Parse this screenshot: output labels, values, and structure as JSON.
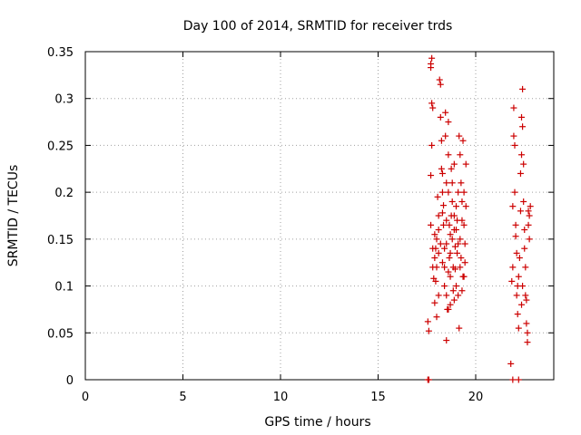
{
  "chart_data": {
    "type": "scatter",
    "title": "Day 100 of 2014, SRMTID for receiver trds",
    "xlabel": "GPS time / hours",
    "ylabel": "SRMTID / TECUs",
    "xlim": [
      0,
      24
    ],
    "ylim": [
      0,
      0.35
    ],
    "x_ticks": [
      0,
      5,
      10,
      15,
      20
    ],
    "x_tick_labels": [
      "0",
      "5",
      "10",
      "15",
      "20"
    ],
    "y_ticks": [
      0,
      0.05,
      0.1,
      0.15,
      0.2,
      0.25,
      0.3,
      0.35
    ],
    "y_tick_labels": [
      "0",
      "0.05",
      "0.1",
      "0.15",
      "0.2",
      "0.25",
      "0.3",
      "0.35"
    ],
    "grid": true,
    "marker": "+",
    "color": "#cc0000",
    "series": [
      {
        "points": [
          [
            17.55,
            0.0
          ],
          [
            17.6,
            0.0
          ],
          [
            21.9,
            0.0
          ],
          [
            22.2,
            0.0
          ],
          [
            17.55,
            0.062
          ],
          [
            17.6,
            0.052
          ],
          [
            17.7,
            0.165
          ],
          [
            17.7,
            0.218
          ],
          [
            17.75,
            0.25
          ],
          [
            17.75,
            0.295
          ],
          [
            17.7,
            0.333
          ],
          [
            17.7,
            0.337
          ],
          [
            17.75,
            0.343
          ],
          [
            17.8,
            0.29
          ],
          [
            17.8,
            0.14
          ],
          [
            17.8,
            0.12
          ],
          [
            17.85,
            0.108
          ],
          [
            17.9,
            0.13
          ],
          [
            17.9,
            0.155
          ],
          [
            17.95,
            0.105
          ],
          [
            17.95,
            0.14
          ],
          [
            17.9,
            0.082
          ],
          [
            18.0,
            0.067
          ],
          [
            18.0,
            0.15
          ],
          [
            18.05,
            0.195
          ],
          [
            18.1,
            0.135
          ],
          [
            18.1,
            0.16
          ],
          [
            18.15,
            0.32
          ],
          [
            18.2,
            0.315
          ],
          [
            18.2,
            0.28
          ],
          [
            18.25,
            0.255
          ],
          [
            18.25,
            0.225
          ],
          [
            18.3,
            0.22
          ],
          [
            18.3,
            0.178
          ],
          [
            18.35,
            0.186
          ],
          [
            18.35,
            0.165
          ],
          [
            18.4,
            0.12
          ],
          [
            18.4,
            0.1
          ],
          [
            18.45,
            0.285
          ],
          [
            18.45,
            0.26
          ],
          [
            18.5,
            0.21
          ],
          [
            18.5,
            0.145
          ],
          [
            18.5,
            0.09
          ],
          [
            18.5,
            0.042
          ],
          [
            18.55,
            0.075
          ],
          [
            18.6,
            0.275
          ],
          [
            18.6,
            0.24
          ],
          [
            18.6,
            0.2
          ],
          [
            18.65,
            0.165
          ],
          [
            18.65,
            0.13
          ],
          [
            18.7,
            0.11
          ],
          [
            18.7,
            0.08
          ],
          [
            18.75,
            0.175
          ],
          [
            18.75,
            0.225
          ],
          [
            18.8,
            0.19
          ],
          [
            18.8,
            0.15
          ],
          [
            18.85,
            0.12
          ],
          [
            18.85,
            0.095
          ],
          [
            18.9,
            0.23
          ],
          [
            18.9,
            0.16
          ],
          [
            18.95,
            0.142
          ],
          [
            18.95,
            0.118
          ],
          [
            19.0,
            0.1
          ],
          [
            19.0,
            0.185
          ],
          [
            19.05,
            0.17
          ],
          [
            19.05,
            0.135
          ],
          [
            19.1,
            0.2
          ],
          [
            19.1,
            0.09
          ],
          [
            19.15,
            0.055
          ],
          [
            19.15,
            0.26
          ],
          [
            19.2,
            0.24
          ],
          [
            19.2,
            0.15
          ],
          [
            19.25,
            0.13
          ],
          [
            19.25,
            0.21
          ],
          [
            19.3,
            0.19
          ],
          [
            19.3,
            0.17
          ],
          [
            19.35,
            0.11
          ],
          [
            19.35,
            0.255
          ],
          [
            19.4,
            0.2
          ],
          [
            19.4,
            0.165
          ],
          [
            19.45,
            0.145
          ],
          [
            19.45,
            0.125
          ],
          [
            19.5,
            0.23
          ],
          [
            19.5,
            0.185
          ],
          [
            18.1,
            0.175
          ],
          [
            18.2,
            0.145
          ],
          [
            18.3,
            0.125
          ],
          [
            18.4,
            0.14
          ],
          [
            18.6,
            0.115
          ],
          [
            18.7,
            0.155
          ],
          [
            18.8,
            0.21
          ],
          [
            18.9,
            0.085
          ],
          [
            19.0,
            0.16
          ],
          [
            19.2,
            0.12
          ],
          [
            18.0,
            0.12
          ],
          [
            18.1,
            0.09
          ],
          [
            18.3,
            0.2
          ],
          [
            18.5,
            0.17
          ],
          [
            18.7,
            0.135
          ],
          [
            18.9,
            0.175
          ],
          [
            19.1,
            0.145
          ],
          [
            19.3,
            0.095
          ],
          [
            19.4,
            0.11
          ],
          [
            18.6,
            0.075
          ],
          [
            21.8,
            0.017
          ],
          [
            21.85,
            0.105
          ],
          [
            21.9,
            0.12
          ],
          [
            21.9,
            0.185
          ],
          [
            21.95,
            0.26
          ],
          [
            21.95,
            0.29
          ],
          [
            22.0,
            0.25
          ],
          [
            22.0,
            0.2
          ],
          [
            22.05,
            0.165
          ],
          [
            22.05,
            0.153
          ],
          [
            22.1,
            0.135
          ],
          [
            22.1,
            0.09
          ],
          [
            22.15,
            0.1
          ],
          [
            22.15,
            0.07
          ],
          [
            22.2,
            0.11
          ],
          [
            22.2,
            0.055
          ],
          [
            22.25,
            0.13
          ],
          [
            22.3,
            0.22
          ],
          [
            22.3,
            0.18
          ],
          [
            22.35,
            0.24
          ],
          [
            22.35,
            0.28
          ],
          [
            22.4,
            0.31
          ],
          [
            22.4,
            0.27
          ],
          [
            22.45,
            0.23
          ],
          [
            22.45,
            0.19
          ],
          [
            22.5,
            0.16
          ],
          [
            22.5,
            0.14
          ],
          [
            22.55,
            0.12
          ],
          [
            22.55,
            0.09
          ],
          [
            22.6,
            0.085
          ],
          [
            22.6,
            0.06
          ],
          [
            22.65,
            0.05
          ],
          [
            22.65,
            0.04
          ],
          [
            22.7,
            0.18
          ],
          [
            22.7,
            0.165
          ],
          [
            22.75,
            0.15
          ],
          [
            22.75,
            0.175
          ],
          [
            22.8,
            0.185
          ],
          [
            22.35,
            0.08
          ],
          [
            22.4,
            0.1
          ]
        ]
      }
    ]
  }
}
